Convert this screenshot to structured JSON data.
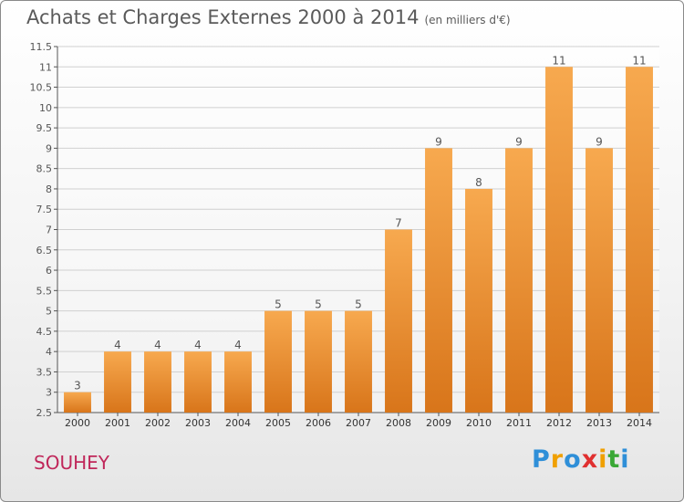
{
  "header": {
    "title": "Achats et Charges Externes 2000 à 2014",
    "unit": "(en milliers d'€)"
  },
  "footer": {
    "commune": "SOUHEY",
    "logo": {
      "text": "Proxiti",
      "letters": [
        {
          "ch": "P",
          "color": "#2f8fd8"
        },
        {
          "ch": "r",
          "color": "#f0a000"
        },
        {
          "ch": "o",
          "color": "#2f8fd8"
        },
        {
          "ch": "x",
          "color": "#e03030"
        },
        {
          "ch": "i",
          "color": "#f0a000"
        },
        {
          "ch": "t",
          "color": "#3aa836"
        },
        {
          "ch": "i",
          "color": "#2f8fd8"
        }
      ]
    }
  },
  "chart_data": {
    "type": "bar",
    "title": "Achats et Charges Externes 2000 à 2014",
    "categories": [
      "2000",
      "2001",
      "2002",
      "2003",
      "2004",
      "2005",
      "2006",
      "2007",
      "2008",
      "2009",
      "2010",
      "2011",
      "2012",
      "2013",
      "2014"
    ],
    "values": [
      3,
      4,
      4,
      4,
      4,
      5,
      5,
      5,
      7,
      9,
      8,
      9,
      11,
      9,
      11
    ],
    "data_labels": [
      "3",
      "4",
      "4",
      "4",
      "4",
      "5",
      "5",
      "5",
      "7",
      "9",
      "8",
      "9",
      "11",
      "9",
      "11"
    ],
    "ylim": [
      2.5,
      11.5
    ],
    "yticks": [
      "2.5",
      "3",
      "3.5",
      "4",
      "4.5",
      "5",
      "5.5",
      "6",
      "6.5",
      "7",
      "7.5",
      "8",
      "8.5",
      "9",
      "9.5",
      "10",
      "10.5",
      "11",
      "11.5"
    ],
    "ytick_values": [
      2.5,
      3,
      3.5,
      4,
      4.5,
      5,
      5.5,
      6,
      6.5,
      7,
      7.5,
      8,
      8.5,
      9,
      9.5,
      10,
      10.5,
      11,
      11.5
    ],
    "grid": true,
    "colors": {
      "bar_top": "#f7a94f",
      "bar_bottom": "#d8751a",
      "grid": "#d0d0d0",
      "axis": "#555555"
    }
  }
}
